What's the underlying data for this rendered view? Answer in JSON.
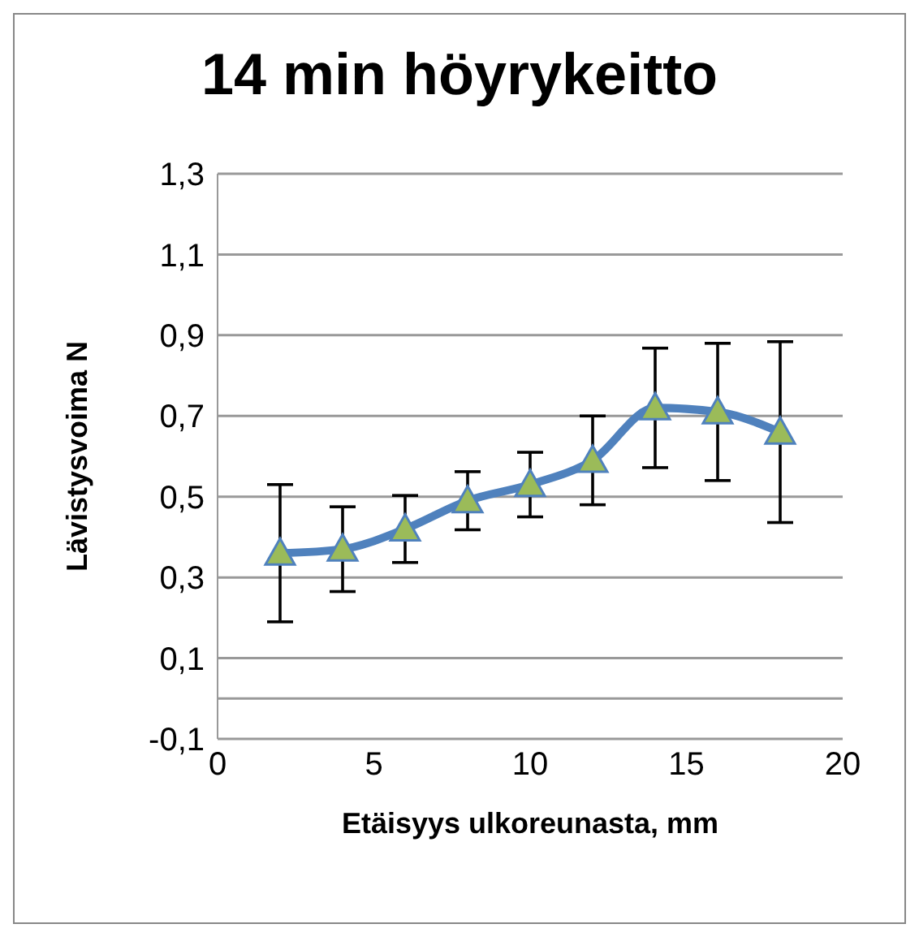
{
  "chart_data": {
    "type": "line",
    "title": "14 min höyrykeitto",
    "xlabel": "Etäisyys ulkoreunasta, mm",
    "ylabel": "Lävistysvoima N",
    "x": [
      2,
      4,
      6,
      8,
      10,
      12,
      14,
      16,
      18
    ],
    "series": [
      {
        "color": "#4f81bd",
        "values": [
          0.36,
          0.37,
          0.42,
          0.49,
          0.53,
          0.59,
          0.72,
          0.71,
          0.66
        ],
        "errors": [
          0.17,
          0.105,
          0.083,
          0.072,
          0.08,
          0.11,
          0.148,
          0.17,
          0.224
        ]
      }
    ],
    "marker": "triangle",
    "xlim": [
      0,
      20
    ],
    "xticks": [
      0,
      5,
      10,
      15,
      20
    ],
    "ylim": [
      -0.1,
      1.3
    ],
    "yticks": [
      {
        "value": -0.1,
        "label": "-0,1"
      },
      {
        "value": 0,
        "label": null
      },
      {
        "value": 0.1,
        "label": "0,1"
      },
      {
        "value": 0.3,
        "label": "0,3"
      },
      {
        "value": 0.5,
        "label": "0,5"
      },
      {
        "value": 0.7,
        "label": "0,7"
      },
      {
        "value": 0.9,
        "label": "0,9"
      },
      {
        "value": 1.1,
        "label": "1,1"
      },
      {
        "value": 1.3,
        "label": "1,3"
      }
    ],
    "grid": "y",
    "legend": false
  }
}
